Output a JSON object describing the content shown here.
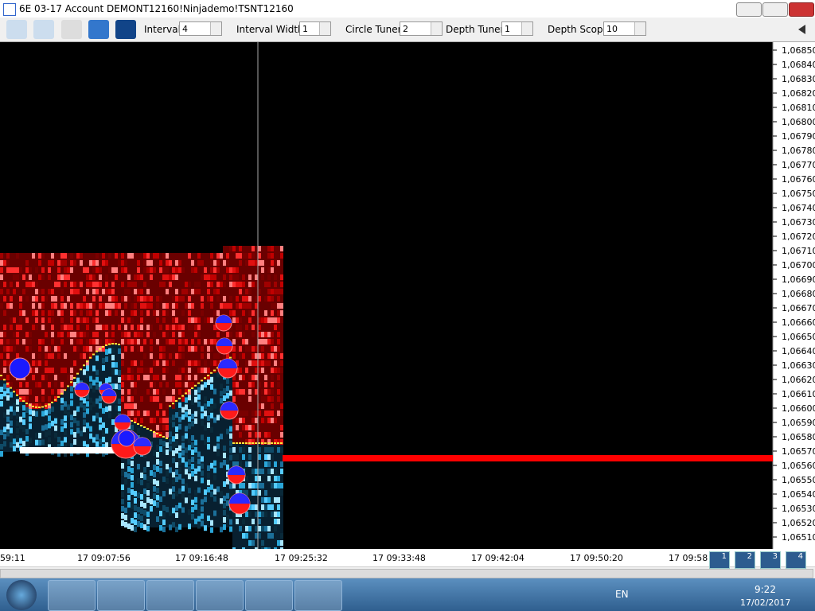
{
  "title_bar": {
    "title": "6E 03-17  Account DEMONT12160!Ninjademo!TSNT12160"
  },
  "toolbar": {
    "fields": [
      {
        "label": "Interval",
        "value": "4"
      },
      {
        "label": "Interval Width",
        "value": "1"
      },
      {
        "label": "Circle Tuner",
        "value": "2"
      },
      {
        "label": "Depth Tuner",
        "value": "1"
      },
      {
        "label": "Depth Scope",
        "value": "10"
      }
    ]
  },
  "price_axis": {
    "labels": [
      "1,06850",
      "1,06840",
      "1,06830",
      "1,06820",
      "1,06810",
      "1,06800",
      "1,06790",
      "1,06780",
      "1,06770",
      "1,06760",
      "1,06750",
      "1,06740",
      "1,06730",
      "1,06720",
      "1,06710",
      "1,06700",
      "1,06690",
      "1,06680",
      "1,06670",
      "1,06660",
      "1,06650",
      "1,06640",
      "1,06630",
      "1,06620",
      "1,06610",
      "1,06600",
      "1,06590",
      "1,06580",
      "1,06570",
      "1,06560",
      "1,06550",
      "1,06540",
      "1,06530",
      "1,06520",
      "1,06510"
    ]
  },
  "time_axis": {
    "labels": [
      "59:11",
      "17 09:07:56",
      "17 09:16:48",
      "17 09:25:32",
      "17 09:33:48",
      "17 09:42:04",
      "17 09:50:20",
      "17 09:58"
    ]
  },
  "workspaces": [
    "1",
    "2",
    "3",
    "4"
  ],
  "taskbar": {
    "language": "EN",
    "time": "9:22",
    "date": "17/02/2017"
  }
}
